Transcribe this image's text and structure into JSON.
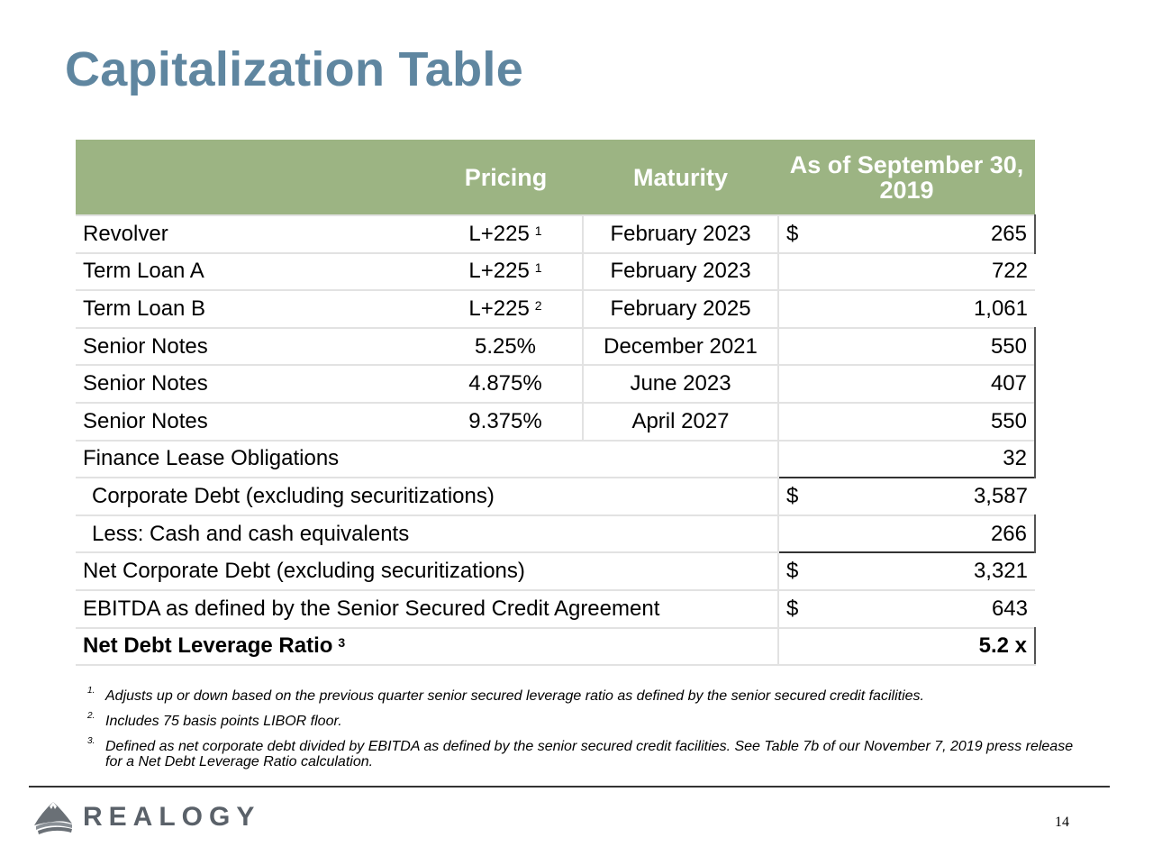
{
  "title": "Capitalization Table",
  "table": {
    "headers": {
      "label": "",
      "pricing": "Pricing",
      "maturity": "Maturity",
      "asof_line1": "As of September 30,",
      "asof_line2": "2019"
    },
    "rows": [
      {
        "label": "Revolver",
        "pricing": "L+225",
        "pricing_note": "1",
        "maturity": "February 2023",
        "currency": "$",
        "amount": "265"
      },
      {
        "label": "Term Loan A",
        "pricing": "L+225",
        "pricing_note": "1",
        "maturity": "February 2023",
        "currency": "",
        "amount": "722"
      },
      {
        "label": "Term Loan B",
        "pricing": "L+225",
        "pricing_note": "2",
        "maturity": "February 2025",
        "currency": "",
        "amount": "1,061"
      },
      {
        "label": "Senior Notes",
        "pricing": "5.25%",
        "pricing_note": "",
        "maturity": "December 2021",
        "currency": "",
        "amount": "550"
      },
      {
        "label": "Senior Notes",
        "pricing": "4.875%",
        "pricing_note": "",
        "maturity": "June 2023",
        "currency": "",
        "amount": "407"
      },
      {
        "label": "Senior Notes",
        "pricing": "9.375%",
        "pricing_note": "",
        "maturity": "April 2027",
        "currency": "",
        "amount": "550"
      },
      {
        "label": "Finance Lease Obligations",
        "currency": "",
        "amount": "32"
      },
      {
        "label": "Corporate Debt (excluding securitizations)",
        "currency": "$",
        "amount": "3,587"
      },
      {
        "label": "Less: Cash and cash equivalents",
        "currency": "",
        "amount": "266"
      },
      {
        "label": "Net Corporate Debt (excluding securitizations)",
        "currency": "$",
        "amount": "3,321"
      },
      {
        "label": "EBITDA as defined by the Senior Secured Credit Agreement",
        "currency": "$",
        "amount": "643"
      },
      {
        "label": "Net Debt Leverage Ratio",
        "label_note": "3",
        "currency": "",
        "amount": "5.2 x"
      }
    ]
  },
  "footnotes": [
    {
      "num": "1.",
      "text": "Adjusts up or down based on the previous quarter senior secured leverage ratio as defined by the senior secured credit facilities."
    },
    {
      "num": "2.",
      "text": "Includes 75 basis points LIBOR floor."
    },
    {
      "num": "3.",
      "text": "Defined as net corporate debt divided by EBITDA as defined by the senior secured credit facilities. See Table 7b of our November 7, 2019 press release for a Net Debt Leverage Ratio calculation."
    }
  ],
  "logo": {
    "text": "REALOGY",
    "icon": "mountain-logo-icon",
    "color": "#5a6169"
  },
  "page_number": "14",
  "colors": {
    "title": "#5f86a0",
    "header_bg": "#9cb483",
    "header_text": "#ffffff"
  }
}
